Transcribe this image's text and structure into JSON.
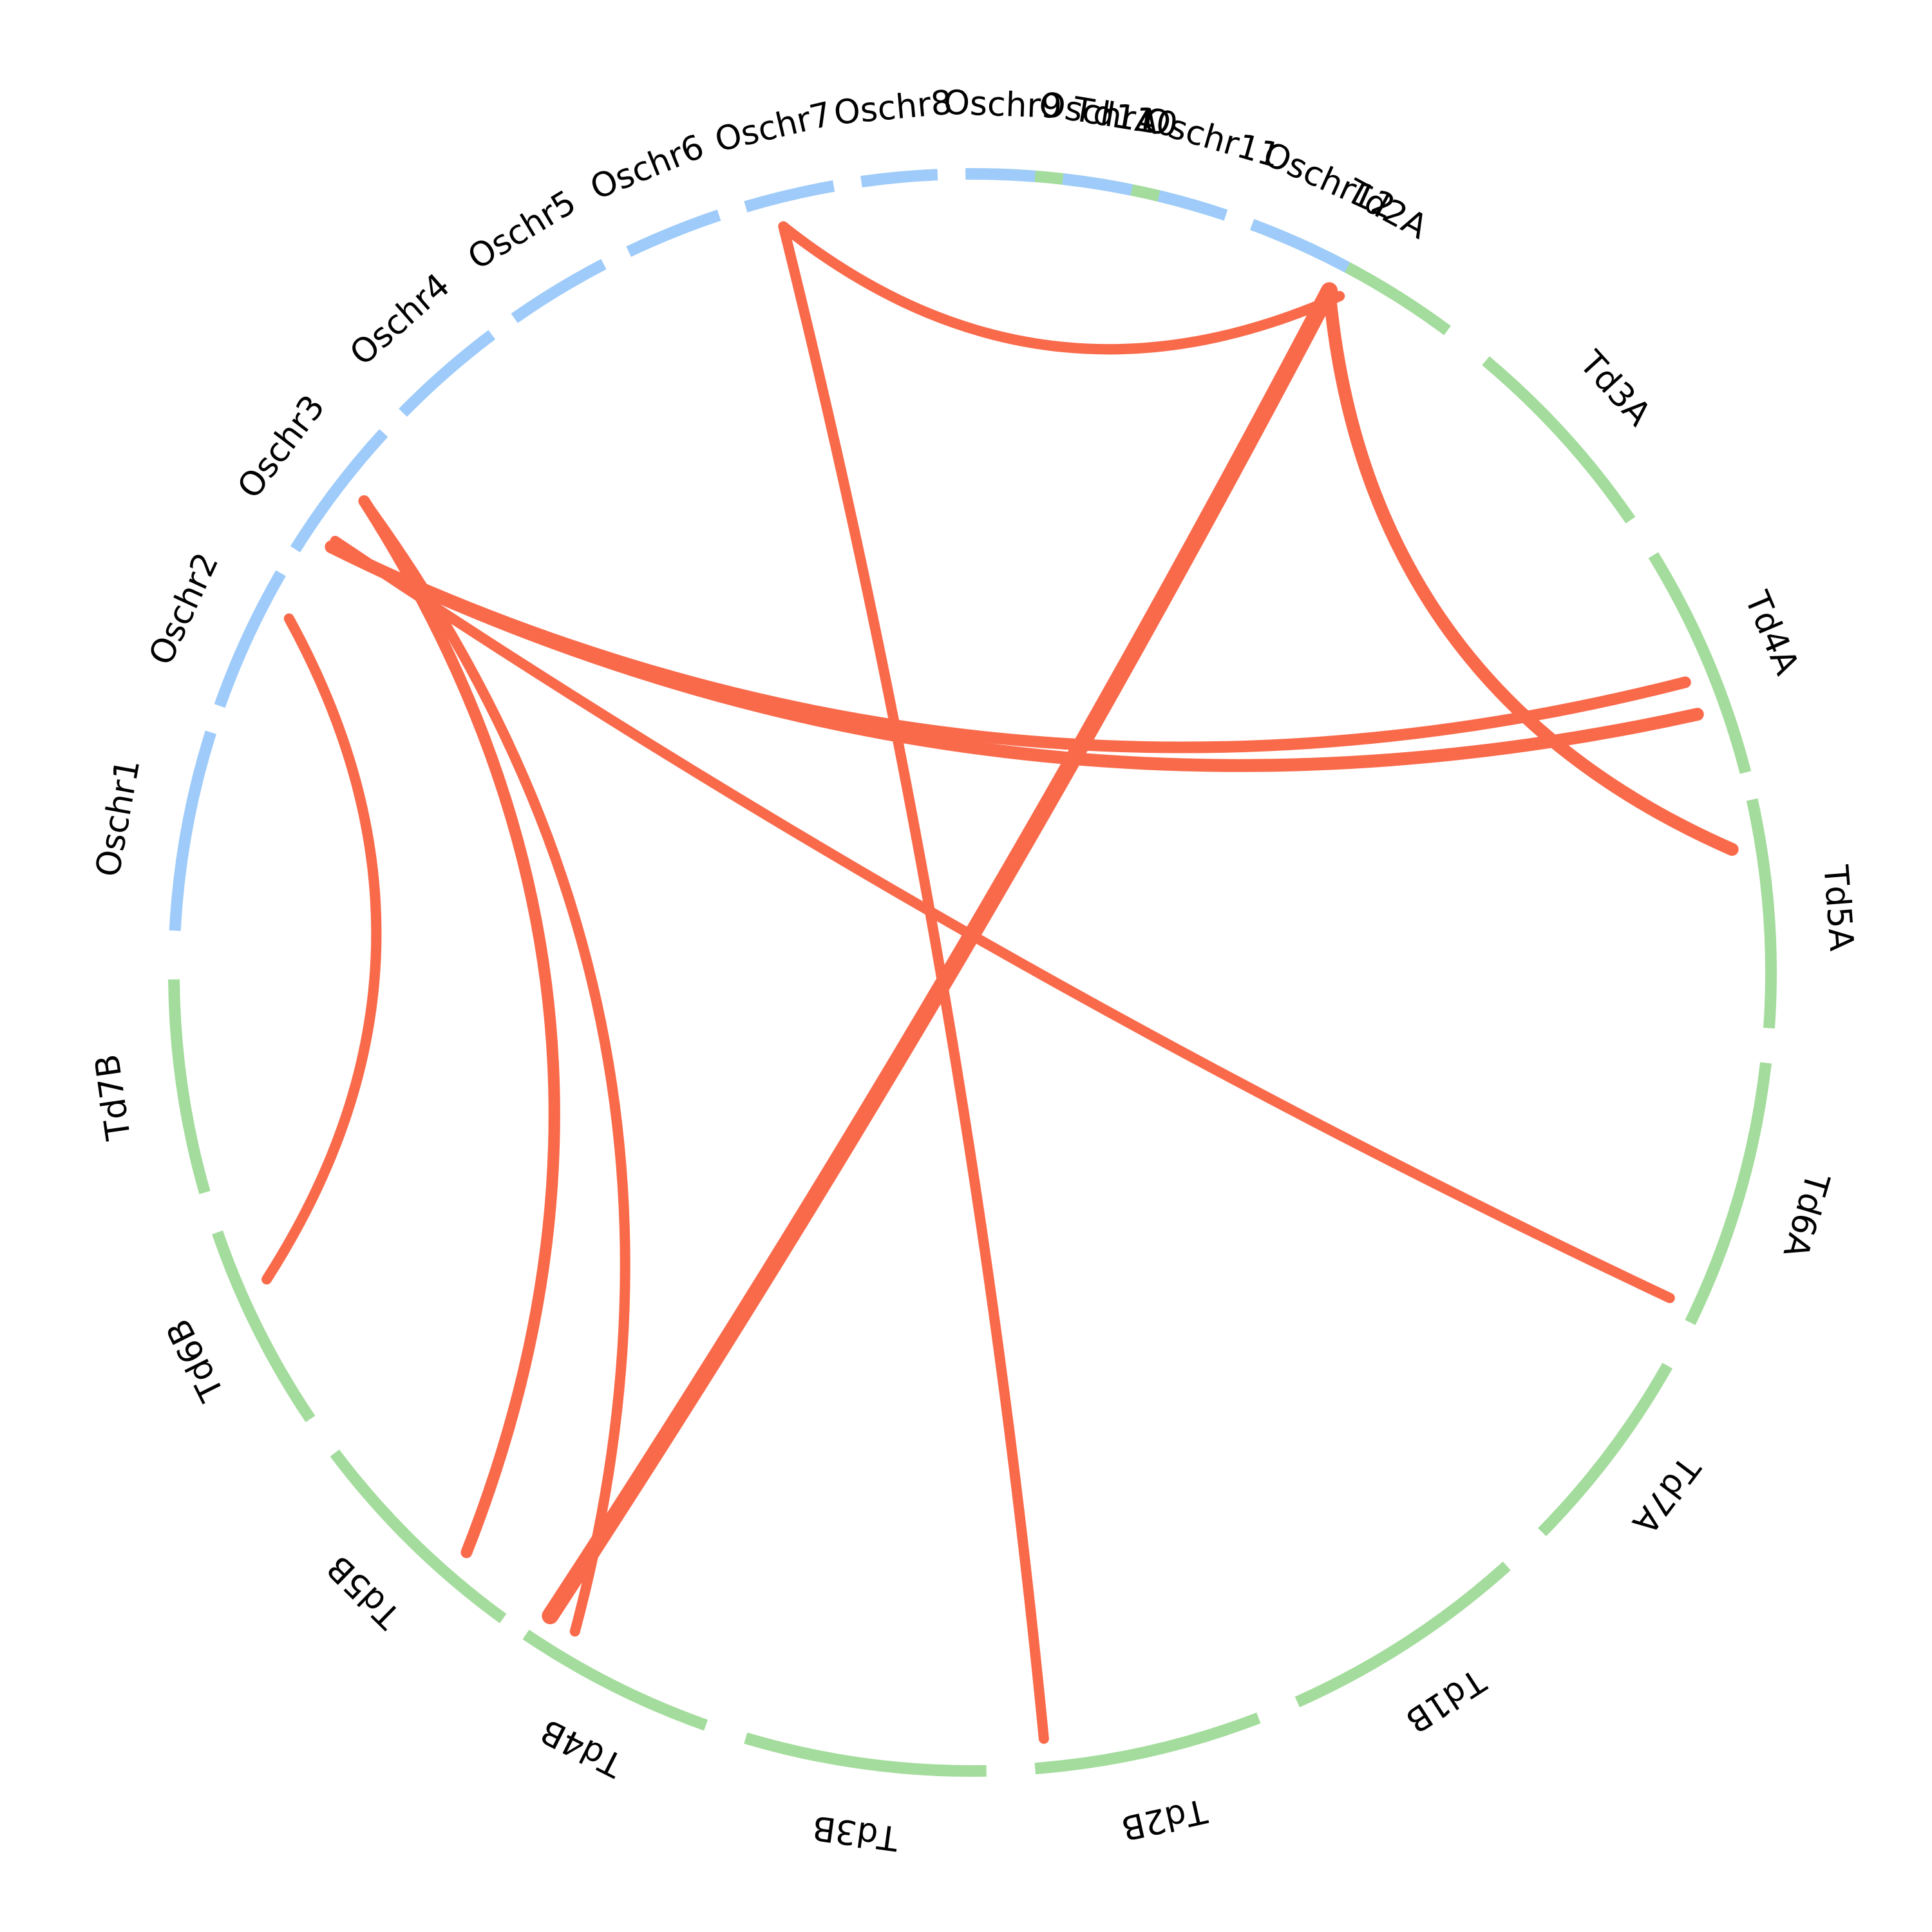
{
  "colors": {
    "rice": "#9ecbfa",
    "wheat": "#a4dc9d",
    "link": "#f96a4b",
    "label": "#000000"
  },
  "segments": [
    {
      "id": "Td1A",
      "label": "Td1A",
      "group": "wheat"
    },
    {
      "id": "Td2A",
      "label": "Td2A",
      "group": "wheat"
    },
    {
      "id": "Td3A",
      "label": "Td3A",
      "group": "wheat"
    },
    {
      "id": "Td4A",
      "label": "Td4A",
      "group": "wheat"
    },
    {
      "id": "Td5A",
      "label": "Td5A",
      "group": "wheat"
    },
    {
      "id": "Td6A",
      "label": "Td6A",
      "group": "wheat"
    },
    {
      "id": "Td7A",
      "label": "Td7A",
      "group": "wheat"
    },
    {
      "id": "Td1B",
      "label": "Td1B",
      "group": "wheat"
    },
    {
      "id": "Td2B",
      "label": "Td2B",
      "group": "wheat"
    },
    {
      "id": "Td3B",
      "label": "Td3B",
      "group": "wheat"
    },
    {
      "id": "Td4B",
      "label": "Td4B",
      "group": "wheat"
    },
    {
      "id": "Td5B",
      "label": "Td5B",
      "group": "wheat"
    },
    {
      "id": "Td6B",
      "label": "Td6B",
      "group": "wheat"
    },
    {
      "id": "Td7B",
      "label": "Td7B",
      "group": "wheat"
    },
    {
      "id": "Oschr1",
      "label": "Oschr1",
      "group": "rice"
    },
    {
      "id": "Oschr2",
      "label": "Oschr2",
      "group": "rice"
    },
    {
      "id": "Oschr3",
      "label": "Oschr3",
      "group": "rice"
    },
    {
      "id": "Oschr4",
      "label": "Oschr4",
      "group": "rice"
    },
    {
      "id": "Oschr5",
      "label": "Oschr5",
      "group": "rice"
    },
    {
      "id": "Oschr6",
      "label": "Oschr6",
      "group": "rice"
    },
    {
      "id": "Oschr7",
      "label": "Oschr7",
      "group": "rice"
    },
    {
      "id": "Oschr8",
      "label": "Oschr8",
      "group": "rice"
    },
    {
      "id": "Oschr9",
      "label": "Oschr9",
      "group": "rice"
    },
    {
      "id": "Oschr10",
      "label": "Oschr10",
      "group": "rice"
    },
    {
      "id": "Oschr11",
      "label": "Oschr11",
      "group": "rice"
    },
    {
      "id": "Oschr12",
      "label": "Oschr12",
      "group": "rice"
    }
  ],
  "links": [
    {
      "from": "Oschr12",
      "to": "Td4B"
    },
    {
      "from": "Oschr12",
      "to": "Td5A"
    },
    {
      "from": "Oschr7",
      "to": "Td2A"
    },
    {
      "from": "Oschr7",
      "to": "Td2B"
    },
    {
      "from": "Oschr3",
      "to": "Td4A"
    },
    {
      "from": "Oschr3",
      "to": "Td4A"
    },
    {
      "from": "Oschr3",
      "to": "Td6A"
    },
    {
      "from": "Oschr3",
      "to": "Td5B"
    },
    {
      "from": "Oschr3",
      "to": "Td4B"
    },
    {
      "from": "Oschr2",
      "to": "Td6B"
    }
  ]
}
